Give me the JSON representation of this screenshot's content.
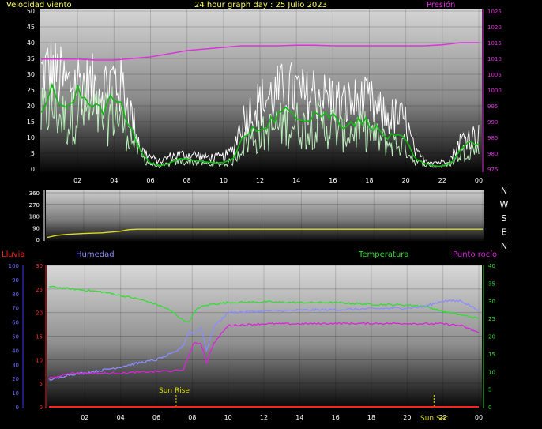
{
  "header": {
    "title": "24 hour graph day : 25 Julio 2023",
    "wind_label": "Velocidad viento",
    "pressure_label": "Presión",
    "rain_label": "Lluvia",
    "humidity_label": "Humedad",
    "temperature_label": "Temperatura",
    "dewpoint_label": "Punto rocío",
    "sunrise_label": "Sun Rise",
    "sunset_label": "Sun Set"
  },
  "colors": {
    "title": "#ffff66",
    "wind_label": "#ffff66",
    "pressure": "#dd33dd",
    "rain": "#ff2020",
    "humidity": "#8c8cff",
    "temperature": "#33dd33",
    "dewpoint": "#dd22dd",
    "direction": "#dddd22",
    "wind_gust": "#ffffff",
    "wind_speed": "#bbeebb",
    "wind_avg": "#11bb11",
    "annot": "#dddd00"
  },
  "chart_data": [
    {
      "type": "line",
      "name": "wind_pressure",
      "xticks": [
        "02",
        "04",
        "06",
        "08",
        "10",
        "12",
        "14",
        "16",
        "18",
        "20",
        "22",
        "00"
      ],
      "y_left_ticks": [
        "0",
        "5",
        "10",
        "15",
        "20",
        "25",
        "30",
        "35",
        "40",
        "45",
        "50"
      ],
      "y_left_lim": [
        0,
        50
      ],
      "y_right_ticks": [
        "975",
        "980",
        "985",
        "990",
        "995",
        "1000",
        "1005",
        "1010",
        "1015",
        "1020",
        "1025"
      ],
      "y_right_lim": [
        975,
        1025
      ],
      "x_hours": [
        0,
        24
      ],
      "series": [
        {
          "name": "Presión",
          "axis": "right",
          "x": [
            0,
            1,
            2,
            3,
            4,
            5,
            6,
            7,
            8,
            9,
            10,
            11,
            12,
            13,
            14,
            15,
            16,
            17,
            18,
            19,
            20,
            21,
            22,
            23,
            24
          ],
          "values": [
            1009.8,
            1009.8,
            1009.8,
            1009.5,
            1009.5,
            1010,
            1010.5,
            1011.5,
            1012.5,
            1013,
            1013.5,
            1014,
            1014,
            1014,
            1014.2,
            1014.2,
            1014,
            1014,
            1014,
            1014,
            1014,
            1014,
            1014.3,
            1015,
            1015
          ]
        }
      ],
      "wind_profile": {
        "note": "avg wind by hour (km/h)",
        "x": [
          0,
          0.5,
          1,
          1.5,
          2,
          2.5,
          3,
          3.5,
          4,
          4.5,
          5,
          5.5,
          6,
          6.5,
          7,
          7.5,
          8,
          8.5,
          9,
          9.5,
          10,
          10.5,
          11,
          11.5,
          12,
          12.5,
          13,
          13.5,
          14,
          14.5,
          15,
          15.5,
          16,
          16.5,
          17,
          17.5,
          18,
          18.5,
          19,
          19.5,
          20,
          20.5,
          21,
          21.5,
          22,
          22.5,
          23,
          23.5,
          24
        ],
        "avg": [
          20,
          25,
          22,
          18,
          24,
          22,
          21,
          19,
          23,
          18,
          12,
          5,
          2,
          1,
          2,
          3,
          3,
          3,
          2,
          2,
          2,
          3,
          9,
          12,
          13,
          15,
          17,
          18,
          18,
          16,
          18,
          17,
          17,
          14,
          15,
          15,
          15,
          12,
          10,
          10,
          9,
          3,
          2,
          1,
          1,
          2,
          6,
          8,
          8
        ],
        "gust": [
          40,
          42,
          38,
          35,
          38,
          35,
          35,
          35,
          38,
          33,
          22,
          8,
          5,
          3,
          5,
          6,
          6,
          6,
          5,
          5,
          5,
          8,
          20,
          25,
          28,
          30,
          32,
          33,
          33,
          30,
          33,
          30,
          30,
          27,
          28,
          28,
          28,
          24,
          22,
          22,
          20,
          7,
          4,
          3,
          3,
          5,
          12,
          14,
          14
        ]
      }
    },
    {
      "type": "line",
      "name": "wind_direction",
      "y_left_ticks": [
        "0",
        "90",
        "180",
        "270",
        "360"
      ],
      "y_left_lim": [
        0,
        360
      ],
      "compass_labels": [
        "N",
        "W",
        "S",
        "E",
        "N"
      ],
      "series": [
        {
          "name": "Direction",
          "axis": "left",
          "x": [
            0,
            0.5,
            1,
            2,
            3,
            4,
            4.5,
            5,
            6,
            8,
            10,
            12,
            14,
            16,
            18,
            20,
            22,
            24
          ],
          "values": [
            15,
            30,
            38,
            45,
            50,
            62,
            75,
            78,
            78,
            78,
            78,
            78,
            78,
            78,
            78,
            78,
            78,
            78
          ]
        }
      ]
    },
    {
      "type": "line",
      "name": "temp_humidity",
      "xticks": [
        "02",
        "04",
        "06",
        "08",
        "10",
        "12",
        "14",
        "16",
        "18",
        "20",
        "22",
        "00"
      ],
      "y_rain_ticks": [
        "0",
        "10",
        "20",
        "30",
        "40",
        "50",
        "60",
        "70",
        "80",
        "90",
        "100"
      ],
      "y_left_ticks": [
        "0",
        "5",
        "10",
        "15",
        "20",
        "25",
        "30"
      ],
      "y_left_lim": [
        0,
        30
      ],
      "y_right_ticks": [
        "0",
        "5",
        "10",
        "15",
        "20",
        "25",
        "30",
        "35",
        "40"
      ],
      "y_right_lim": [
        0,
        40
      ],
      "sunrise_hour": 7.1,
      "sunset_hour": 21.5,
      "series": [
        {
          "name": "Temperatura",
          "axis": "right",
          "x": [
            0,
            1,
            2,
            3,
            4,
            5,
            6,
            6.5,
            7,
            7.5,
            7.8,
            8.3,
            9,
            10,
            12,
            14,
            16,
            18,
            20,
            21,
            22,
            23,
            24
          ],
          "values": [
            34,
            33.5,
            33,
            32.5,
            31.5,
            30.5,
            29,
            28,
            26.5,
            24.5,
            24,
            28,
            29,
            29.5,
            29.7,
            29.5,
            29.5,
            29,
            28.8,
            28.5,
            27,
            26,
            25
          ]
        },
        {
          "name": "Humedad",
          "axis": "left",
          "x": [
            0,
            0.5,
            1,
            2,
            3,
            4,
            5,
            6,
            7,
            7.5,
            7.8,
            8.1,
            8.5,
            8.8,
            9.2,
            10,
            12,
            14,
            16,
            18,
            20,
            21,
            22,
            23,
            24
          ],
          "values": [
            5.8,
            6,
            6.8,
            7.2,
            7.8,
            8.5,
            9.3,
            10,
            11.5,
            13,
            16,
            15.5,
            17,
            12,
            17,
            20,
            20.3,
            20.5,
            20.6,
            20.8,
            21,
            21.3,
            22.5,
            22.5,
            20.5
          ]
        },
        {
          "name": "Punto rocío",
          "axis": "right",
          "x": [
            0,
            0.5,
            1,
            2,
            3,
            4,
            5,
            6,
            7,
            7.5,
            7.8,
            8.1,
            8.5,
            8.8,
            9.2,
            10,
            12,
            14,
            16,
            18,
            20,
            21,
            22,
            23,
            24
          ],
          "values": [
            8,
            8.5,
            9.5,
            9.5,
            9.5,
            9.5,
            9.8,
            10,
            10.2,
            10.5,
            14.5,
            18,
            18,
            12.5,
            18,
            23,
            23.5,
            23.5,
            23.6,
            23.6,
            23.6,
            23.5,
            23.5,
            23,
            21
          ]
        },
        {
          "name": "Lluvia",
          "axis": "rain",
          "x": [
            0,
            24
          ],
          "values": [
            0,
            0
          ]
        }
      ]
    }
  ]
}
